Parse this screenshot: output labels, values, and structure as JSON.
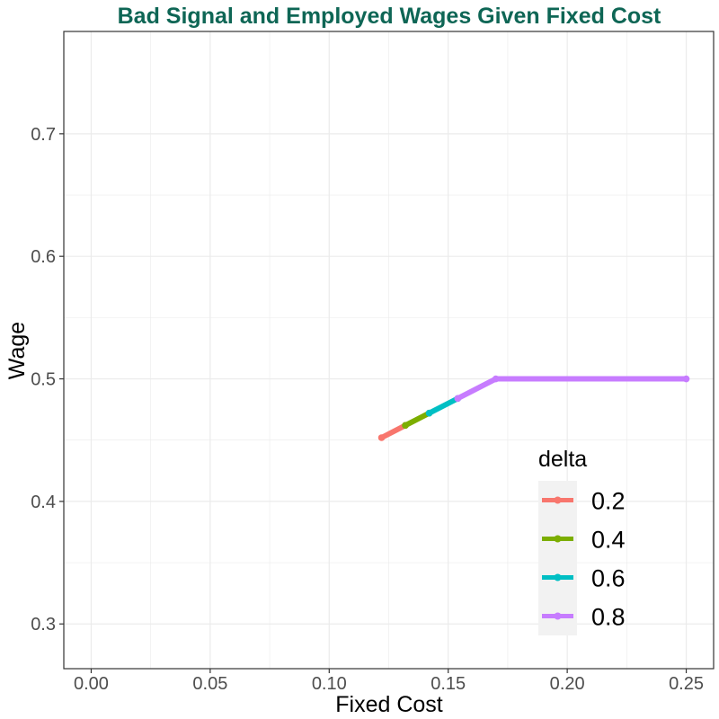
{
  "chart_data": {
    "type": "line",
    "title": "Bad Signal and Employed Wages Given Fixed Cost",
    "xlabel": "Fixed Cost",
    "ylabel": "Wage",
    "xlim": [
      -0.0115,
      0.2615
    ],
    "ylim": [
      0.2635,
      0.7835
    ],
    "x_ticks": [
      0.0,
      0.05,
      0.1,
      0.15,
      0.2,
      0.25
    ],
    "x_tick_labels": [
      "0.00",
      "0.05",
      "0.10",
      "0.15",
      "0.20",
      "0.25"
    ],
    "y_ticks": [
      0.3,
      0.4,
      0.5,
      0.6,
      0.7
    ],
    "y_tick_labels": [
      "0.3",
      "0.4",
      "0.5",
      "0.6",
      "0.7"
    ],
    "grid": true,
    "legend": {
      "title": "delta",
      "placement": "bottom-right-inside"
    },
    "series": [
      {
        "name": "0.2",
        "color": "#F8766D",
        "x": [
          0.122,
          0.132
        ],
        "y": [
          0.452,
          0.462
        ]
      },
      {
        "name": "0.4",
        "color": "#7CAE00",
        "x": [
          0.132,
          0.142
        ],
        "y": [
          0.462,
          0.472
        ]
      },
      {
        "name": "0.6",
        "color": "#00BFC4",
        "x": [
          0.142,
          0.154
        ],
        "y": [
          0.472,
          0.484
        ]
      },
      {
        "name": "0.8",
        "color": "#C77CFF",
        "x": [
          0.154,
          0.17,
          0.25
        ],
        "y": [
          0.484,
          0.5,
          0.5
        ]
      }
    ]
  },
  "colors": {
    "title": "#0e6655",
    "grid": "#ebebeb",
    "panel_border": "#333333",
    "legend_key_bg": "#f2f2f2"
  }
}
